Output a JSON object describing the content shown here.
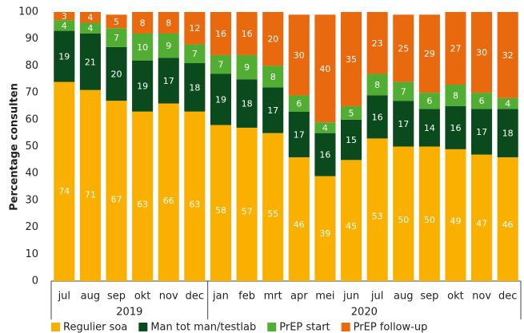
{
  "chart_data": {
    "type": "stacked_bar",
    "y_label": "Percentage consulten",
    "category_groups": [
      {
        "label": "2019",
        "categories": [
          "jul",
          "aug",
          "sep",
          "okt",
          "nov",
          "dec"
        ]
      },
      {
        "label": "2020",
        "categories": [
          "jan",
          "feb",
          "mrt",
          "apr",
          "mei",
          "jun",
          "jul",
          "aug",
          "sep",
          "okt",
          "nov",
          "dec"
        ]
      }
    ],
    "series": [
      {
        "name": "Regulier soa",
        "color": "#f9b000",
        "values": [
          74,
          71,
          67,
          63,
          66,
          63,
          58,
          57,
          55,
          46,
          39,
          45,
          53,
          50,
          50,
          49,
          47,
          46
        ]
      },
      {
        "name": "Man tot man/testlab",
        "color": "#0b4a1d",
        "values": [
          19,
          21,
          20,
          19,
          17,
          18,
          19,
          18,
          17,
          17,
          16,
          15,
          16,
          17,
          14,
          16,
          17,
          18
        ]
      },
      {
        "name": "PrEP start",
        "color": "#52ae32",
        "values": [
          4,
          4,
          7,
          10,
          9,
          7,
          7,
          9,
          8,
          6,
          4,
          5,
          8,
          7,
          6,
          8,
          6,
          4
        ]
      },
      {
        "name": "PrEP follow-up",
        "color": "#e8690e",
        "values": [
          3,
          4,
          5,
          8,
          8,
          12,
          16,
          16,
          20,
          30,
          40,
          35,
          23,
          25,
          29,
          27,
          30,
          32
        ]
      }
    ],
    "ylim": [
      0,
      100
    ],
    "yticks": [
      0,
      10,
      20,
      30,
      40,
      50,
      60,
      70,
      80,
      90,
      100
    ],
    "legend": "bottom"
  }
}
